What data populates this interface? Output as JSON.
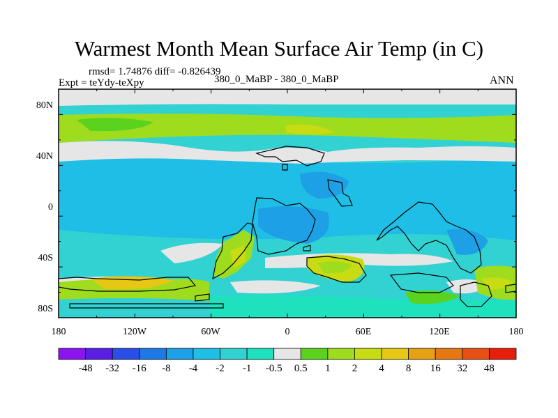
{
  "title": "Warmest Month Mean Surface Air Temp (in C)",
  "stats": {
    "rmsd_label": "rmsd=",
    "rmsd": "1.74876",
    "diff_label": "diff=",
    "diff": "-0.826439",
    "text": "rmsd= 1.74876 diff= -0.826439"
  },
  "experiment": "Expt = teYdy-teXpy",
  "comparison": "380_0_MaBP - 380_0_MaBP",
  "season": "ANN",
  "axes": {
    "x_ticks": [
      "180",
      "120W",
      "60W",
      "0",
      "60E",
      "120E",
      "180"
    ],
    "y_ticks": [
      "80N",
      "40N",
      "0",
      "40S",
      "80S"
    ]
  },
  "colorbar": {
    "labels": [
      "-48",
      "-32",
      "-16",
      "-8",
      "-4",
      "-2",
      "-1",
      "-0.5",
      "0.5",
      "1",
      "2",
      "4",
      "8",
      "16",
      "32",
      "48"
    ],
    "colors": [
      "#8c14f0",
      "#5a1ee6",
      "#2850e6",
      "#1e78e6",
      "#1ea0e6",
      "#1ebee6",
      "#32d2d2",
      "#1ee1be",
      "#e6e6e6",
      "#5ad21e",
      "#a0dc1e",
      "#c8dc14",
      "#e6c814",
      "#e6a014",
      "#e67814",
      "#e65014",
      "#e61e0a"
    ]
  },
  "chart_data": {
    "type": "heatmap",
    "title": "Warmest Month Mean Surface Air Temp (in C)",
    "x_ticks": [
      "180",
      "120W",
      "60W",
      "0",
      "60E",
      "120E",
      "180"
    ],
    "y_ticks": [
      "80N",
      "40N",
      "0",
      "40S",
      "80S"
    ],
    "xlim": [
      -180,
      180
    ],
    "ylim": [
      -90,
      90
    ],
    "levels": [
      -48,
      -32,
      -16,
      -8,
      -4,
      -2,
      -1,
      -0.5,
      0.5,
      1,
      2,
      4,
      8,
      16,
      32,
      48
    ],
    "legend": "bottom"
  }
}
